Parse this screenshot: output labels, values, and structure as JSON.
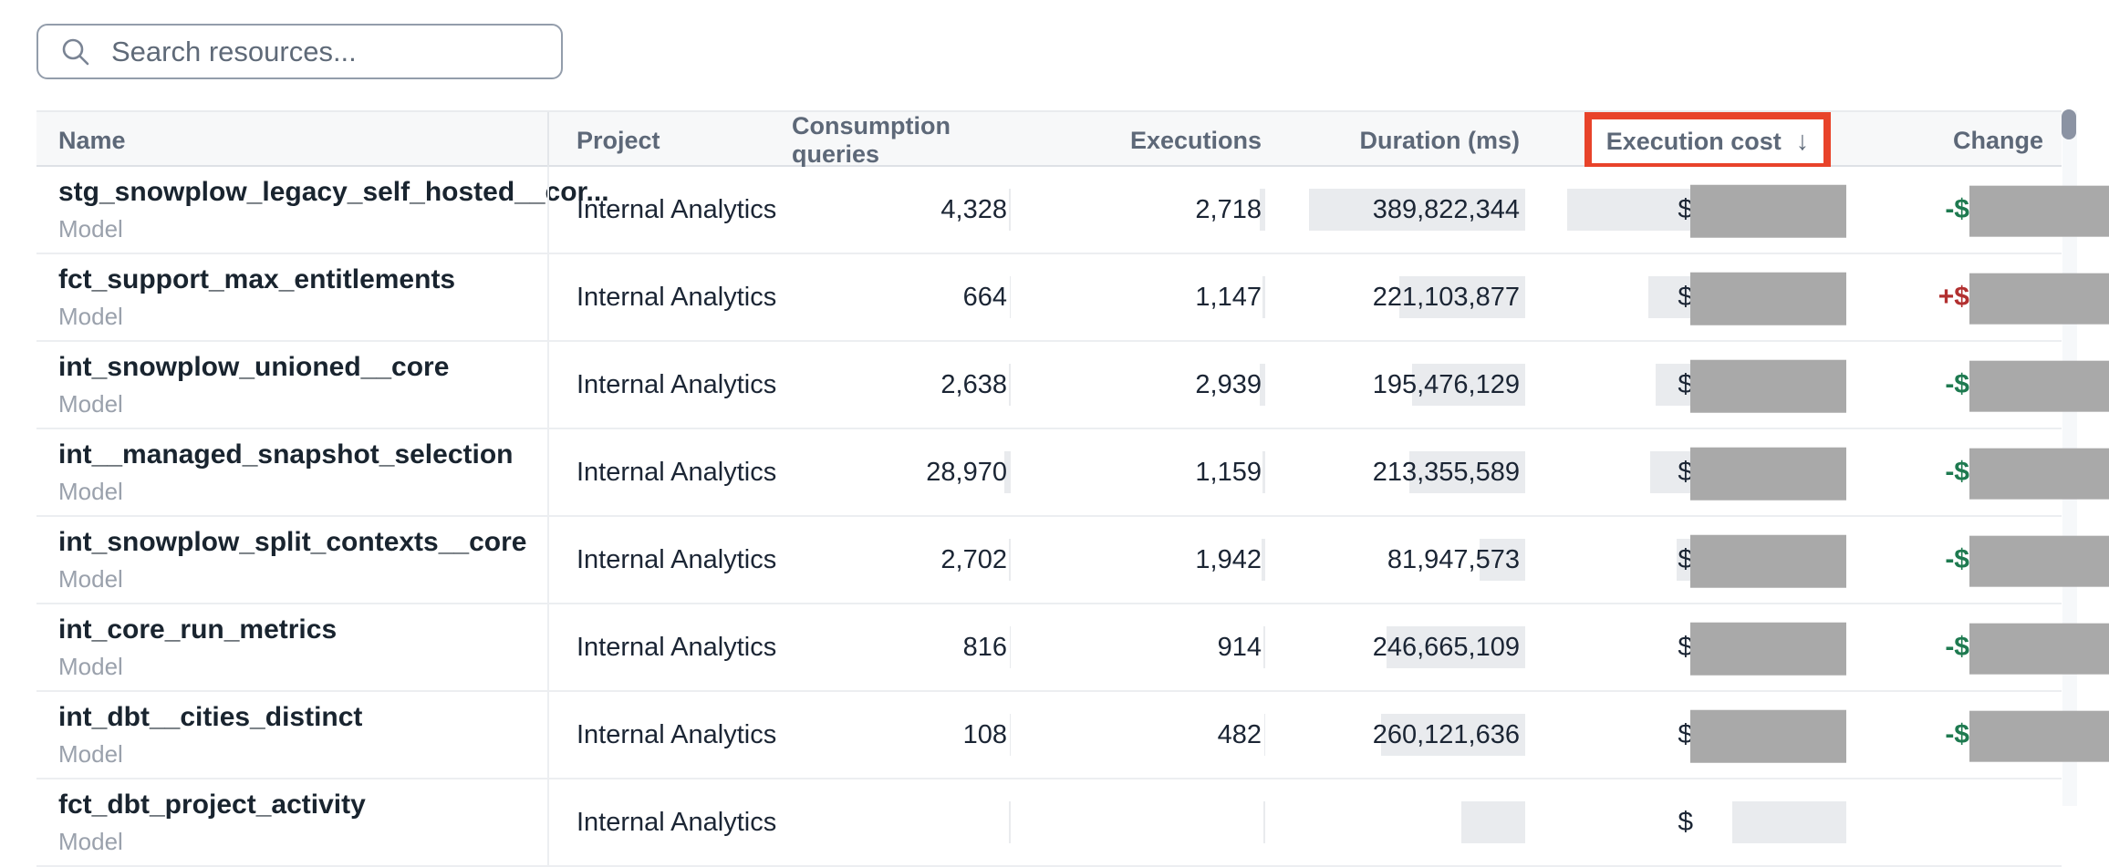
{
  "search": {
    "placeholder": "Search resources...",
    "value": ""
  },
  "colors": {
    "annotation_red": "#e8432a",
    "redaction_gray": "#a9a9a9",
    "bar_gray": "#e9ebee",
    "change_negative_green": "#1e7a50",
    "change_positive_red": "#b23030"
  },
  "header": {
    "name": "Name",
    "project": "Project",
    "consumption_queries": "Consumption queries",
    "executions": "Executions",
    "duration": "Duration (ms)",
    "execution_cost": "Execution cost",
    "execution_cost_sort_indicator": "↓",
    "change": "Change"
  },
  "rows": [
    {
      "name": "stg_snowplow_legacy_self_hosted__cor...",
      "type": "Model",
      "project": "Internal Analytics",
      "consumption_queries": "4,328",
      "executions": "2,718",
      "duration_ms": "389,822,344",
      "cost_prefix": "$",
      "change_sign": "-$",
      "change_dir": "neg",
      "bars": {
        "cq": 2,
        "ex": 6,
        "dur": 237,
        "cost": 306
      },
      "cost_redacted": true,
      "change_redacted": true
    },
    {
      "name": "fct_support_max_entitlements",
      "type": "Model",
      "project": "Internal Analytics",
      "consumption_queries": "664",
      "executions": "1,147",
      "duration_ms": "221,103,877",
      "cost_prefix": "$",
      "change_sign": "+$",
      "change_dir": "pos",
      "bars": {
        "cq": 1,
        "ex": 3,
        "dur": 138,
        "cost": 217
      },
      "cost_redacted": true,
      "change_redacted": true
    },
    {
      "name": "int_snowplow_unioned__core",
      "type": "Model",
      "project": "Internal Analytics",
      "consumption_queries": "2,638",
      "executions": "2,939",
      "duration_ms": "195,476,129",
      "cost_prefix": "$",
      "change_sign": "-$",
      "change_dir": "neg",
      "bars": {
        "cq": 2,
        "ex": 6,
        "dur": 124,
        "cost": 209
      },
      "cost_redacted": true,
      "change_redacted": true
    },
    {
      "name": "int__managed_snapshot_selection",
      "type": "Model",
      "project": "Internal Analytics",
      "consumption_queries": "28,970",
      "executions": "1,159",
      "duration_ms": "213,355,589",
      "cost_prefix": "$",
      "change_sign": "-$",
      "change_dir": "neg",
      "bars": {
        "cq": 7,
        "ex": 3,
        "dur": 127,
        "cost": 215
      },
      "cost_redacted": true,
      "change_redacted": true
    },
    {
      "name": "int_snowplow_split_contexts__core",
      "type": "Model",
      "project": "Internal Analytics",
      "consumption_queries": "2,702",
      "executions": "1,942",
      "duration_ms": "81,947,573",
      "cost_prefix": "$",
      "change_sign": "-$",
      "change_dir": "neg",
      "bars": {
        "cq": 2,
        "ex": 4,
        "dur": 50,
        "cost": 186
      },
      "cost_redacted": true,
      "change_redacted": true
    },
    {
      "name": "int_core_run_metrics",
      "type": "Model",
      "project": "Internal Analytics",
      "consumption_queries": "816",
      "executions": "914",
      "duration_ms": "246,665,109",
      "cost_prefix": "$",
      "change_sign": "-$",
      "change_dir": "neg",
      "bars": {
        "cq": 1,
        "ex": 2,
        "dur": 152,
        "cost": 160
      },
      "cost_redacted": true,
      "change_redacted": true
    },
    {
      "name": "int_dbt__cities_distinct",
      "type": "Model",
      "project": "Internal Analytics",
      "consumption_queries": "108",
      "executions": "482",
      "duration_ms": "260,121,636",
      "cost_prefix": "$",
      "change_sign": "-$",
      "change_dir": "neg",
      "bars": {
        "cq": 1,
        "ex": 1,
        "dur": 158,
        "cost": 165
      },
      "cost_redacted": true,
      "change_redacted": true
    },
    {
      "name": "fct_dbt_project_activity",
      "type": "Model",
      "project": "Internal Analytics",
      "consumption_queries": "",
      "executions": "",
      "duration_ms": "",
      "cost_prefix": "$",
      "change_sign": "",
      "change_dir": "neg",
      "bars": {
        "cq": 2,
        "ex": 2,
        "dur": 70,
        "cost": 125
      },
      "cost_redacted": false,
      "change_redacted": false
    }
  ]
}
